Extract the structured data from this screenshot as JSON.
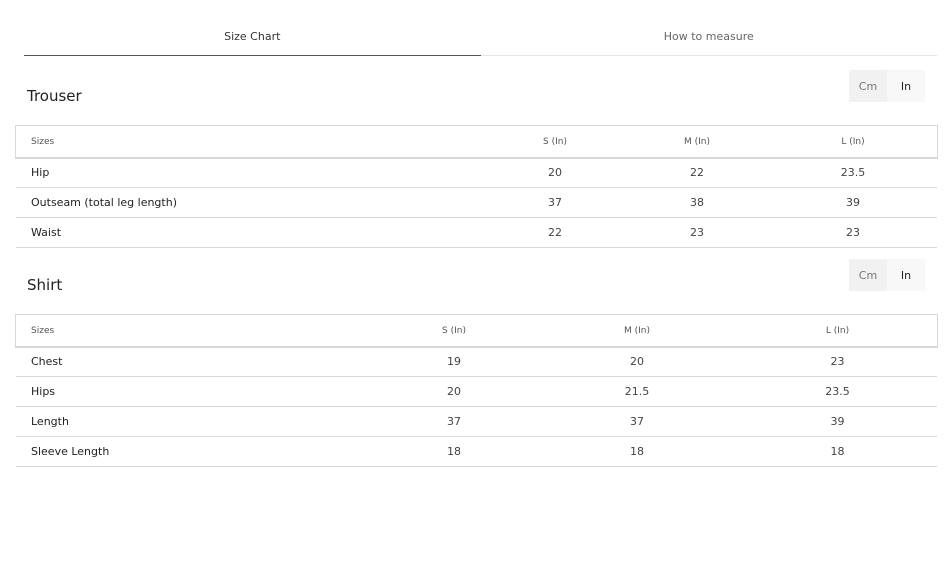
{
  "tabs": [
    {
      "label": "Size Chart",
      "active": true
    },
    {
      "label": "How to measure",
      "active": false
    }
  ],
  "unit_toggle": {
    "options": [
      "Cm",
      "In"
    ],
    "selected": "In"
  },
  "trouser": {
    "title": "Trouser",
    "headers": [
      "Sizes",
      "S (In)",
      "M (In)",
      "L (In)"
    ],
    "rows": [
      [
        "Hip",
        "20",
        "22",
        "23.5"
      ],
      [
        "Outseam (total leg length)",
        "37",
        "38",
        "39"
      ],
      [
        "Waist",
        "22",
        "23",
        "23"
      ]
    ]
  },
  "shirt": {
    "title": "Shirt",
    "headers": [
      "Sizes",
      "S (In)",
      "M (In)",
      "L (In)"
    ],
    "rows": [
      [
        "Chest",
        "19",
        "20",
        "23"
      ],
      [
        "Hips",
        "20",
        "21.5",
        "23.5"
      ],
      [
        "Length",
        "37",
        "37",
        "39"
      ],
      [
        "Sleeve Length",
        "18",
        "18",
        "18"
      ]
    ]
  }
}
